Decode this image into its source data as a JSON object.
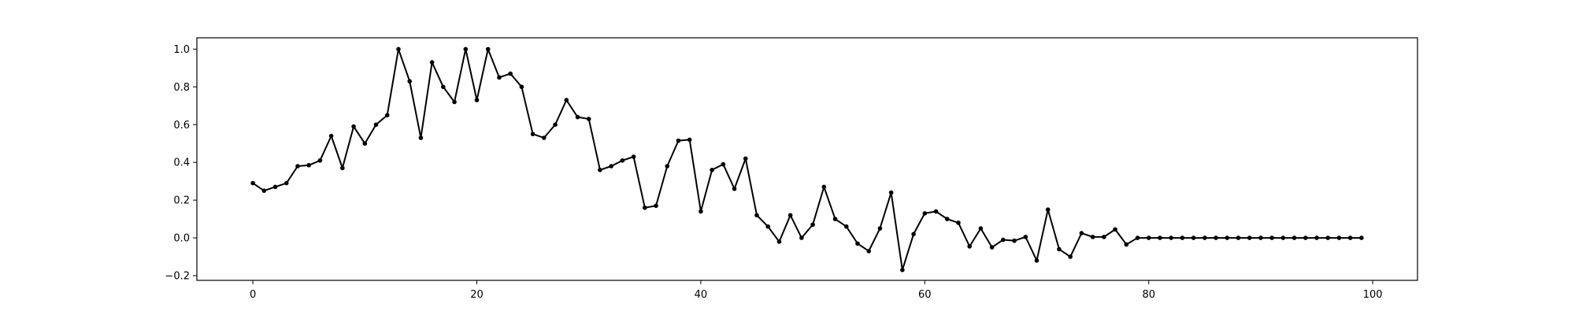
{
  "chart_data": {
    "type": "line",
    "title": "",
    "xlabel": "",
    "ylabel": "",
    "xlim": [
      -5,
      104
    ],
    "ylim": [
      -0.225,
      1.06
    ],
    "xticks": [
      0,
      20,
      40,
      60,
      80,
      100
    ],
    "yticks": [
      -0.2,
      0.0,
      0.2,
      0.4,
      0.6,
      0.8,
      1.0
    ],
    "xtick_labels": [
      "0",
      "20",
      "40",
      "60",
      "80",
      "100"
    ],
    "ytick_labels": [
      "−0.2",
      "0.0",
      "0.2",
      "0.4",
      "0.6",
      "0.8",
      "1.0"
    ],
    "grid": false,
    "line_color": "#000000",
    "series": [
      {
        "x": [
          0,
          1,
          2,
          3,
          4,
          5,
          6,
          7,
          8,
          9,
          10,
          11,
          12,
          13,
          14,
          15,
          16,
          17,
          18,
          19,
          20,
          21,
          22,
          23,
          24,
          25,
          26,
          27,
          28,
          29,
          30,
          31,
          32,
          33,
          34,
          35,
          36,
          37,
          38,
          39,
          40,
          41,
          42,
          43,
          44,
          45,
          46,
          47,
          48,
          49,
          50,
          51,
          52,
          53,
          54,
          55,
          56,
          57,
          58,
          59,
          60,
          61,
          62,
          63,
          64,
          65,
          66,
          67,
          68,
          69,
          70,
          71,
          72,
          73,
          74,
          75,
          76,
          77,
          78,
          79,
          80,
          81,
          82,
          83,
          84,
          85,
          86,
          87,
          88,
          89,
          90,
          91,
          92,
          93,
          94,
          95,
          96,
          97,
          98,
          99
        ],
        "y": [
          0.29,
          0.25,
          0.27,
          0.29,
          0.38,
          0.385,
          0.41,
          0.54,
          0.37,
          0.59,
          0.5,
          0.6,
          0.65,
          1.0,
          0.83,
          0.53,
          0.93,
          0.8,
          0.72,
          1.0,
          0.73,
          1.0,
          0.85,
          0.87,
          0.8,
          0.55,
          0.53,
          0.6,
          0.73,
          0.64,
          0.63,
          0.36,
          0.38,
          0.41,
          0.43,
          0.16,
          0.17,
          0.38,
          0.515,
          0.52,
          0.14,
          0.36,
          0.39,
          0.26,
          0.42,
          0.12,
          0.06,
          -0.02,
          0.12,
          0.0,
          0.07,
          0.27,
          0.1,
          0.06,
          -0.03,
          -0.07,
          0.05,
          0.24,
          -0.17,
          0.02,
          0.13,
          0.14,
          0.1,
          0.08,
          -0.045,
          0.05,
          -0.05,
          -0.01,
          -0.015,
          0.005,
          -0.12,
          0.15,
          -0.06,
          -0.1,
          0.025,
          0.005,
          0.005,
          0.045,
          -0.035,
          0.0,
          0.0,
          0.0,
          0.0,
          0.0,
          0.0,
          0.0,
          0.0,
          0.0,
          0.0,
          0.0,
          0.0,
          0.0,
          0.0,
          0.0,
          0.0,
          0.0,
          0.0,
          0.0,
          0.0,
          0.0
        ]
      }
    ]
  }
}
